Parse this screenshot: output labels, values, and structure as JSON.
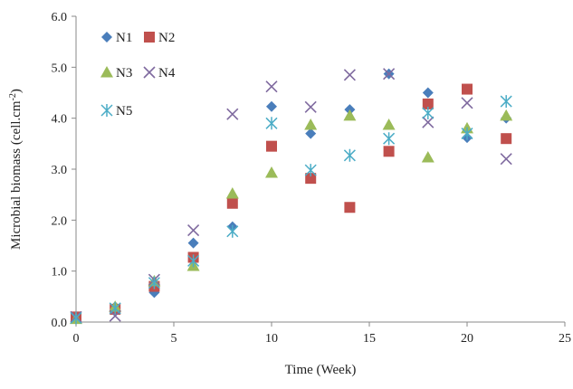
{
  "chart_data": {
    "type": "scatter",
    "title": "",
    "xlabel": "Time (Week)",
    "ylabel_main": "Microbial biomass (cell.cm",
    "ylabel_sup": "-2",
    "ylabel_end": ")",
    "xlim": [
      0,
      25
    ],
    "ylim": [
      0,
      6
    ],
    "xticks": [
      0,
      5,
      10,
      15,
      20,
      25
    ],
    "xtick_labels": [
      "0",
      "5",
      "10",
      "15",
      "20",
      "25"
    ],
    "yticks": [
      0,
      1,
      2,
      3,
      4,
      5,
      6
    ],
    "ytick_labels": [
      "0.0",
      "1.0",
      "2.0",
      "3.0",
      "4.0",
      "5.0",
      "6.0"
    ],
    "grid": false,
    "legend_position": "top-left",
    "series": [
      {
        "name": "N1",
        "marker": "diamond",
        "color": "#4a7ebb",
        "x": [
          0,
          2,
          4,
          6,
          8,
          10,
          12,
          14,
          16,
          18,
          20,
          22
        ],
        "y": [
          0.08,
          0.3,
          0.58,
          1.55,
          1.87,
          4.23,
          3.7,
          4.17,
          4.87,
          4.5,
          3.62,
          4.0
        ]
      },
      {
        "name": "N2",
        "marker": "square",
        "color": "#c0504d",
        "x": [
          0,
          2,
          4,
          6,
          8,
          10,
          12,
          14,
          16,
          18,
          20,
          22
        ],
        "y": [
          0.1,
          0.25,
          0.7,
          1.27,
          2.33,
          3.45,
          2.82,
          2.25,
          3.35,
          4.28,
          4.57,
          3.6
        ]
      },
      {
        "name": "N3",
        "marker": "triangle",
        "color": "#9bbb59",
        "x": [
          0,
          2,
          4,
          6,
          8,
          10,
          12,
          14,
          16,
          18,
          20,
          22
        ],
        "y": [
          0.06,
          0.3,
          0.8,
          1.1,
          2.52,
          2.93,
          3.87,
          4.05,
          3.87,
          3.23,
          3.8,
          4.05
        ]
      },
      {
        "name": "N4",
        "marker": "x",
        "color": "#7f6a9f",
        "x": [
          0,
          2,
          4,
          6,
          8,
          10,
          12,
          14,
          16,
          18,
          20,
          22
        ],
        "y": [
          0.1,
          0.12,
          0.83,
          1.8,
          4.08,
          4.62,
          4.22,
          4.85,
          4.87,
          3.92,
          4.3,
          3.2
        ]
      },
      {
        "name": "N5",
        "marker": "asterisk",
        "color": "#4bacc6",
        "x": [
          0,
          2,
          4,
          6,
          8,
          10,
          12,
          14,
          16,
          18,
          20,
          22
        ],
        "y": [
          0.08,
          0.27,
          0.77,
          1.2,
          1.78,
          3.9,
          2.98,
          3.27,
          3.6,
          4.1,
          3.7,
          4.33
        ]
      }
    ]
  }
}
